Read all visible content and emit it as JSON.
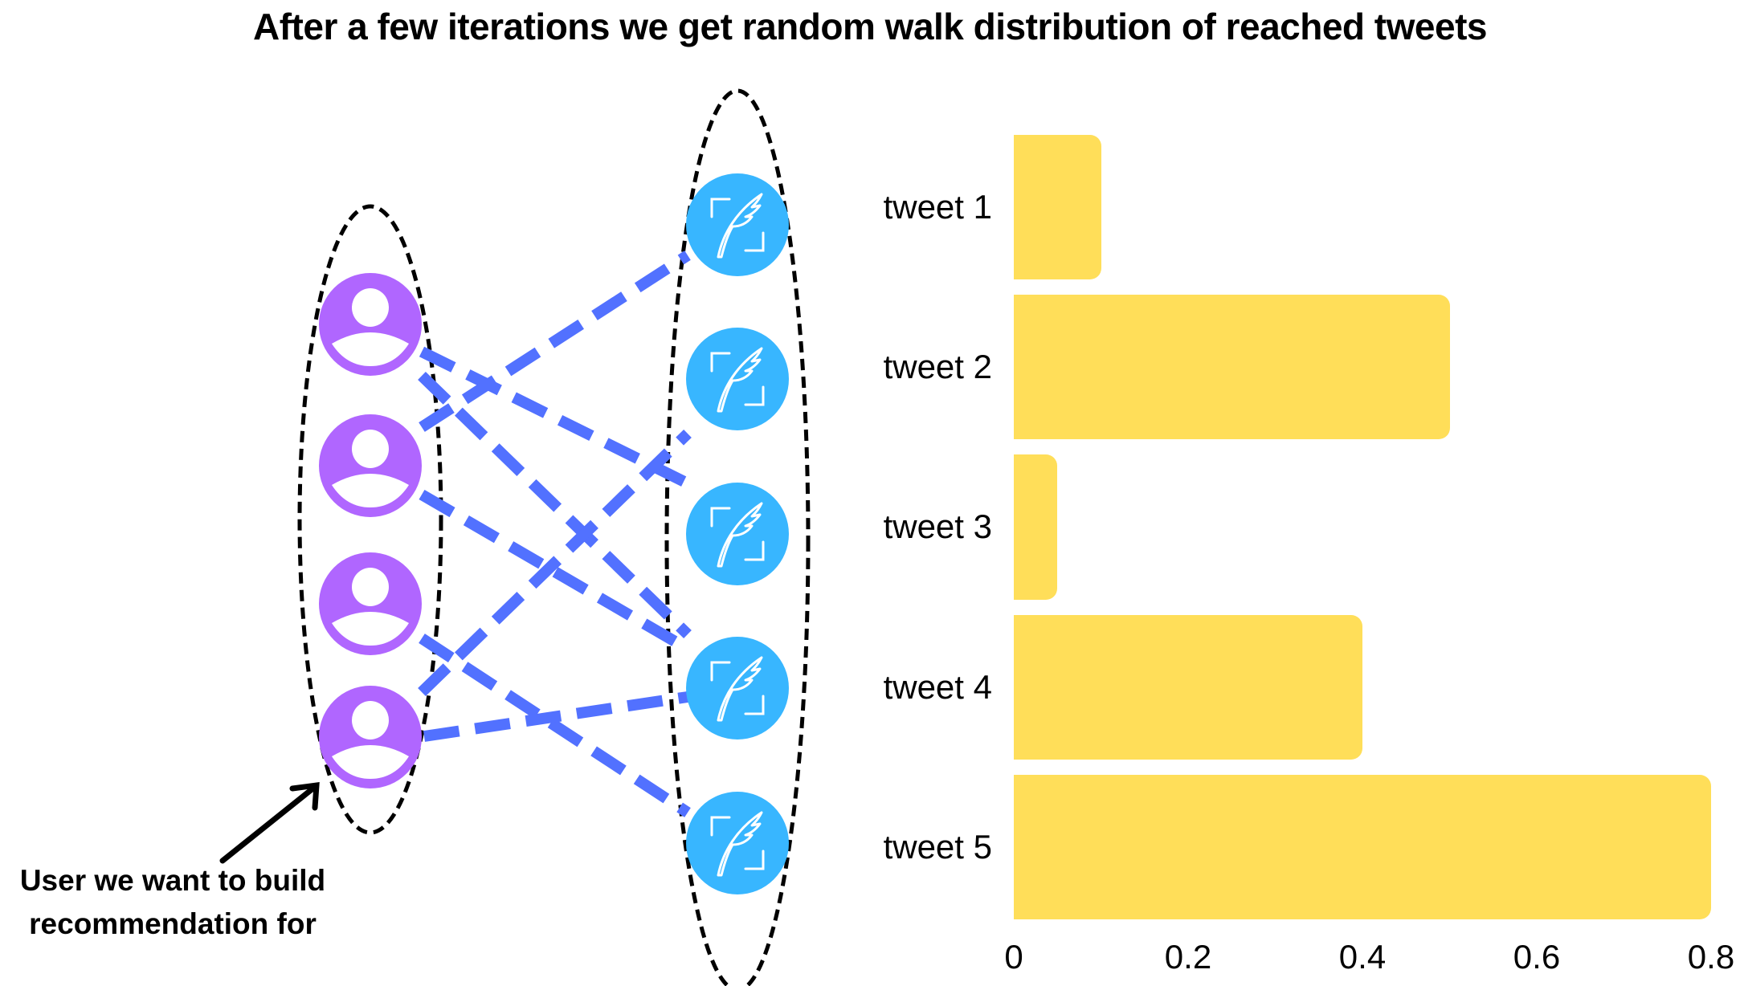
{
  "title": "After a few iterations we get random walk distribution of reached tweets",
  "annotation": {
    "line1": "User we want to build",
    "line2": "recommendation for"
  },
  "colors": {
    "user_node": "#B066FF",
    "tweet_node": "#38B6FF",
    "edge": "#5271FF",
    "bar": "#FFDE59",
    "group_outline": "#000000"
  },
  "graph": {
    "users": [
      {
        "id": "user-1",
        "icon": "user-icon"
      },
      {
        "id": "user-2",
        "icon": "user-icon"
      },
      {
        "id": "user-3",
        "icon": "user-icon"
      },
      {
        "id": "user-4",
        "icon": "user-icon",
        "highlighted": true
      }
    ],
    "tweets": [
      {
        "id": "tweet-1",
        "icon": "quill-feather-icon"
      },
      {
        "id": "tweet-2",
        "icon": "quill-feather-icon"
      },
      {
        "id": "tweet-3",
        "icon": "quill-feather-icon"
      },
      {
        "id": "tweet-4",
        "icon": "quill-feather-icon"
      },
      {
        "id": "tweet-5",
        "icon": "quill-feather-icon"
      }
    ],
    "edges": [
      {
        "from": "user-1",
        "to": "tweet-3"
      },
      {
        "from": "user-1",
        "to": "tweet-4"
      },
      {
        "from": "user-2",
        "to": "tweet-1"
      },
      {
        "from": "user-2",
        "to": "tweet-4"
      },
      {
        "from": "user-3",
        "to": "tweet-5"
      },
      {
        "from": "user-4",
        "to": "tweet-2"
      },
      {
        "from": "user-4",
        "to": "tweet-4"
      }
    ]
  },
  "chart_data": {
    "type": "bar",
    "orientation": "horizontal",
    "title": "After a few iterations we get random walk distribution of reached tweets",
    "categories": [
      "tweet 1",
      "tweet 2",
      "tweet 3",
      "tweet 4",
      "tweet 5"
    ],
    "values": [
      0.1,
      0.5,
      0.05,
      0.4,
      0.8
    ],
    "xlabel": "",
    "ylabel": "",
    "xlim": [
      0,
      0.8
    ],
    "x_ticks": [
      "0",
      "0.2",
      "0.4",
      "0.6",
      "0.8"
    ],
    "grid": false,
    "legend": null
  }
}
